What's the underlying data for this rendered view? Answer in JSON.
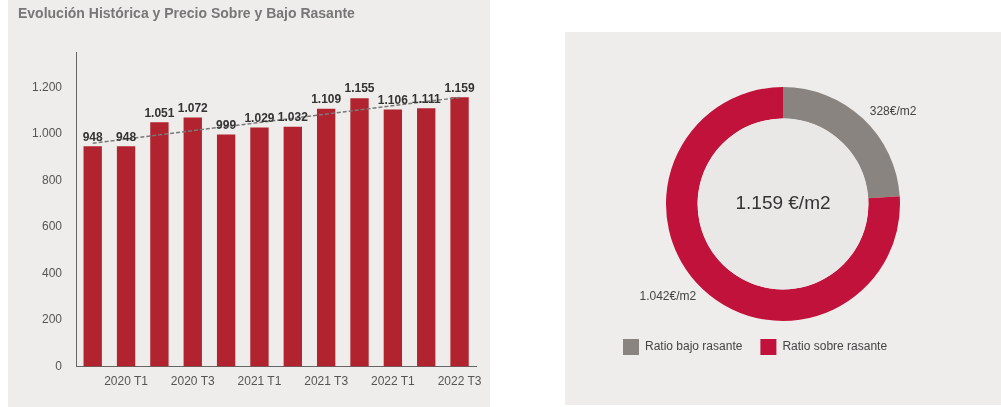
{
  "chart_data": [
    {
      "type": "bar",
      "title": "Evolución Histórica y Precio Sobre y Bajo Rasante",
      "categories": [
        null,
        "2020 T1",
        null,
        "2020 T3",
        null,
        "2021 T1",
        null,
        "2021 T3",
        null,
        "2022 T1",
        null,
        "2022 T3"
      ],
      "series": [
        {
          "color": "#b0232f",
          "values": [
            948,
            948,
            1051,
            1072,
            999,
            1029,
            1032,
            1109,
            1155,
            1106,
            1111,
            1159
          ],
          "value_labels": [
            "948",
            "948",
            "1.051",
            "1.072",
            "999",
            "1.029",
            "1.032",
            "1.109",
            "1.155",
            "1.106",
            "1.111",
            "1.159"
          ]
        },
        {
          "type": "line",
          "color": "#7a7a7a",
          "line_style": "dashed",
          "marker": "none",
          "values": [
            961,
            null,
            null,
            null,
            null,
            null,
            null,
            null,
            null,
            null,
            null,
            1158
          ]
        }
      ],
      "ylim": [
        0,
        1350
      ],
      "yticks": [
        {
          "value": 0,
          "label": "0"
        },
        {
          "value": 200,
          "label": "200"
        },
        {
          "value": 400,
          "label": "400"
        },
        {
          "value": 600,
          "label": "600"
        },
        {
          "value": 800,
          "label": "800"
        },
        {
          "value": 1000,
          "label": "1.000"
        },
        {
          "value": 1200,
          "label": "1.200"
        }
      ],
      "grid": false,
      "legend": false
    },
    {
      "type": "donut",
      "categories": [
        "Ratio bajo rasante",
        "Ratio sobre rasante"
      ],
      "values": [
        328,
        1042
      ],
      "colors": [
        "#8a8480",
        "#c0123a"
      ],
      "value_labels": [
        "328€/m2",
        "1.042€/m2"
      ],
      "annotations": [
        "1.159 €/m2"
      ],
      "legend": "bottom left"
    }
  ]
}
